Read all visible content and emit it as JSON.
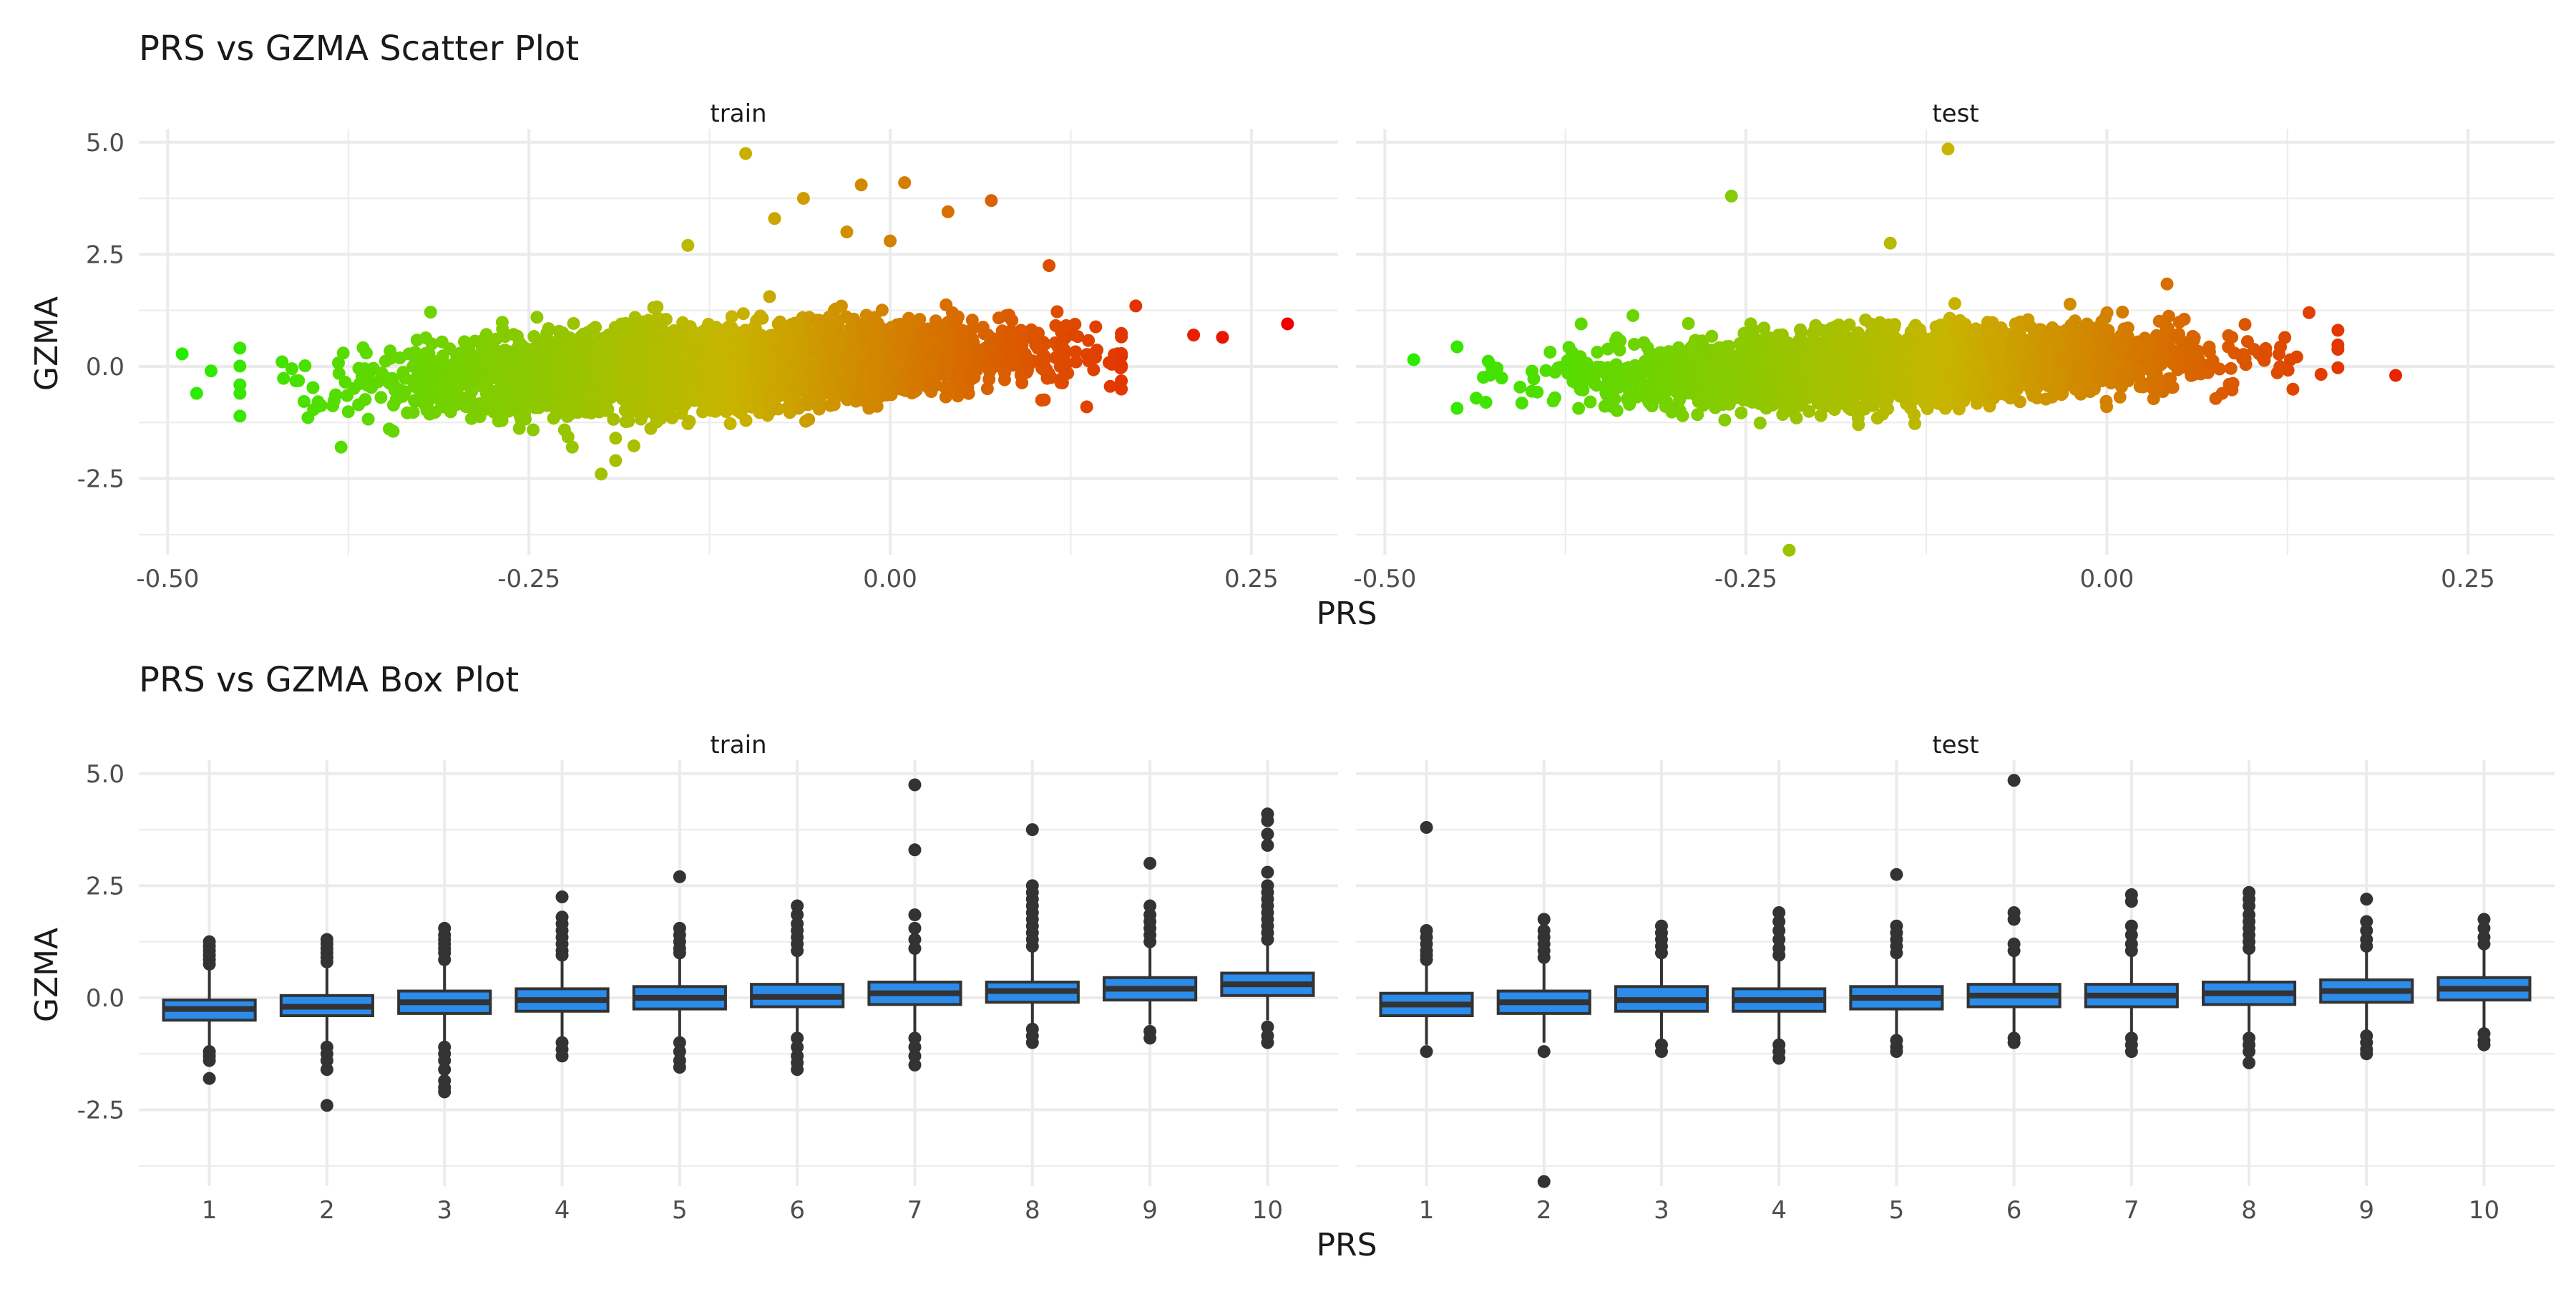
{
  "colors": {
    "point_low": "#22ee00",
    "point_mid": "#c8b400",
    "point_high": "#ee0000",
    "box_fill": "#2b8ceb",
    "box_line": "#333333"
  },
  "chart_data": [
    {
      "type": "scatter",
      "title": "PRS vs GZMA Scatter Plot",
      "xlabel": "PRS",
      "ylabel": "GZMA",
      "xlim": [
        -0.52,
        0.31
      ],
      "ylim": [
        -4.2,
        5.3
      ],
      "x_ticks": [
        -0.5,
        -0.25,
        0.0,
        0.25
      ],
      "x_tick_labels": [
        "-0.50",
        "-0.25",
        "0.00",
        "0.25"
      ],
      "y_ticks": [
        -2.5,
        0.0,
        2.5,
        5.0
      ],
      "y_tick_labels": [
        "-2.5",
        "0.0",
        "2.5",
        "5.0"
      ],
      "grid": true,
      "legend": "none",
      "color_scale": {
        "low": "#22ee00",
        "mid": "#c8b400",
        "high": "#ee0000"
      },
      "panels": [
        {
          "strip": "train",
          "bulk": {
            "x_mean": -0.12,
            "x_sd": 0.1,
            "slope": 1.6,
            "resid_sd": 0.42
          },
          "points": [
            [
              -0.49,
              0.28
            ],
            [
              -0.48,
              -0.6
            ],
            [
              -0.47,
              -0.1
            ],
            [
              -0.45,
              -0.6
            ],
            [
              -0.38,
              -1.8
            ],
            [
              -0.22,
              -1.8
            ],
            [
              -0.19,
              -1.6
            ],
            [
              -0.19,
              -2.1
            ],
            [
              -0.2,
              -2.4
            ],
            [
              -0.1,
              4.75
            ],
            [
              -0.08,
              3.3
            ],
            [
              -0.06,
              3.75
            ],
            [
              -0.02,
              4.05
            ],
            [
              0.01,
              4.1
            ],
            [
              -0.03,
              3.0
            ],
            [
              0.04,
              3.45
            ],
            [
              0.07,
              3.7
            ],
            [
              0.11,
              2.25
            ],
            [
              0.17,
              1.35
            ],
            [
              0.21,
              0.7
            ],
            [
              0.23,
              0.65
            ],
            [
              0.275,
              0.95
            ],
            [
              -0.14,
              2.7
            ],
            [
              0.0,
              2.8
            ]
          ]
        },
        {
          "strip": "test",
          "bulk": {
            "x_mean": -0.14,
            "x_sd": 0.095,
            "slope": 1.3,
            "resid_sd": 0.38
          },
          "points": [
            [
              -0.48,
              0.15
            ],
            [
              -0.26,
              3.8
            ],
            [
              -0.11,
              4.85
            ],
            [
              -0.22,
              -4.1
            ],
            [
              -0.15,
              2.75
            ],
            [
              0.2,
              -0.2
            ],
            [
              0.14,
              1.2
            ],
            [
              0.11,
              0.4
            ],
            [
              0.12,
              0.0
            ],
            [
              -0.43,
              -0.8
            ]
          ]
        }
      ]
    },
    {
      "type": "box",
      "title": "PRS vs GZMA Box Plot",
      "xlabel": "PRS",
      "ylabel": "GZMA",
      "categories": [
        "1",
        "2",
        "3",
        "4",
        "5",
        "6",
        "7",
        "8",
        "9",
        "10"
      ],
      "ylim": [
        -4.2,
        5.3
      ],
      "y_ticks": [
        -2.5,
        0.0,
        2.5,
        5.0
      ],
      "y_tick_labels": [
        "-2.5",
        "0.0",
        "2.5",
        "5.0"
      ],
      "grid": true,
      "legend": "none",
      "panels": [
        {
          "strip": "train",
          "boxes": [
            {
              "q1": -0.5,
              "median": -0.25,
              "q3": -0.05,
              "wlo": -1.15,
              "whi": 0.65,
              "outliers": [
                0.75,
                0.85,
                0.95,
                1.05,
                1.15,
                1.25,
                -1.2,
                -1.3,
                -1.4,
                -1.8
              ]
            },
            {
              "q1": -0.4,
              "median": -0.2,
              "q3": 0.05,
              "wlo": -1.05,
              "whi": 0.7,
              "outliers": [
                0.8,
                0.9,
                1.0,
                1.1,
                1.2,
                1.3,
                -1.1,
                -1.25,
                -1.4,
                -1.6,
                -2.4
              ]
            },
            {
              "q1": -0.35,
              "median": -0.1,
              "q3": 0.15,
              "wlo": -1.0,
              "whi": 0.8,
              "outliers": [
                0.85,
                1.0,
                1.1,
                1.2,
                1.3,
                1.4,
                1.55,
                -1.1,
                -1.25,
                -1.4,
                -1.6,
                -1.85,
                -2.0,
                -2.1
              ]
            },
            {
              "q1": -0.3,
              "median": -0.05,
              "q3": 0.2,
              "wlo": -0.95,
              "whi": 0.85,
              "outliers": [
                0.95,
                1.05,
                1.2,
                1.35,
                1.5,
                1.65,
                1.8,
                2.25,
                -1.0,
                -1.15,
                -1.3
              ]
            },
            {
              "q1": -0.25,
              "median": 0.0,
              "q3": 0.25,
              "wlo": -0.9,
              "whi": 0.9,
              "outliers": [
                1.0,
                1.1,
                1.25,
                1.4,
                1.55,
                2.7,
                -1.0,
                -1.2,
                -1.4,
                -1.55
              ]
            },
            {
              "q1": -0.2,
              "median": 0.02,
              "q3": 0.3,
              "wlo": -0.85,
              "whi": 0.95,
              "outliers": [
                1.05,
                1.2,
                1.35,
                1.5,
                1.65,
                1.85,
                2.05,
                -0.9,
                -1.1,
                -1.3,
                -1.45,
                -1.6
              ]
            },
            {
              "q1": -0.15,
              "median": 0.1,
              "q3": 0.35,
              "wlo": -0.8,
              "whi": 1.0,
              "outliers": [
                1.1,
                1.3,
                1.55,
                1.85,
                3.3,
                4.75,
                -0.9,
                -1.1,
                -1.3,
                -1.5
              ]
            },
            {
              "q1": -0.1,
              "median": 0.15,
              "q3": 0.35,
              "wlo": -0.7,
              "whi": 1.05,
              "outliers": [
                1.15,
                1.3,
                1.45,
                1.6,
                1.75,
                1.9,
                2.05,
                2.2,
                2.35,
                2.5,
                3.75,
                -0.7,
                -0.85,
                -1.0
              ]
            },
            {
              "q1": -0.05,
              "median": 0.2,
              "q3": 0.45,
              "wlo": -0.6,
              "whi": 1.15,
              "outliers": [
                1.25,
                1.4,
                1.55,
                1.7,
                1.85,
                2.05,
                3.0,
                -0.75,
                -0.9
              ]
            },
            {
              "q1": 0.05,
              "median": 0.3,
              "q3": 0.55,
              "wlo": -0.5,
              "whi": 1.2,
              "outliers": [
                1.3,
                1.45,
                1.6,
                1.75,
                1.9,
                2.05,
                2.2,
                2.35,
                2.5,
                2.8,
                3.4,
                3.65,
                3.95,
                4.1,
                -0.65,
                -0.85,
                -1.0
              ]
            }
          ]
        },
        {
          "strip": "test",
          "boxes": [
            {
              "q1": -0.4,
              "median": -0.15,
              "q3": 0.1,
              "wlo": -1.05,
              "whi": 0.75,
              "outliers": [
                0.85,
                0.95,
                1.05,
                1.2,
                1.35,
                1.5,
                3.8,
                -1.2
              ]
            },
            {
              "q1": -0.35,
              "median": -0.1,
              "q3": 0.15,
              "wlo": -1.0,
              "whi": 0.8,
              "outliers": [
                0.9,
                1.05,
                1.2,
                1.35,
                1.5,
                1.75,
                -1.2,
                -4.1
              ]
            },
            {
              "q1": -0.3,
              "median": -0.05,
              "q3": 0.25,
              "wlo": -0.95,
              "whi": 0.9,
              "outliers": [
                1.0,
                1.15,
                1.3,
                1.45,
                1.6,
                -1.05,
                -1.2
              ]
            },
            {
              "q1": -0.3,
              "median": -0.05,
              "q3": 0.2,
              "wlo": -0.95,
              "whi": 0.85,
              "outliers": [
                0.95,
                1.1,
                1.3,
                1.5,
                1.7,
                1.9,
                -1.05,
                -1.2,
                -1.35
              ]
            },
            {
              "q1": -0.25,
              "median": 0.0,
              "q3": 0.25,
              "wlo": -0.9,
              "whi": 0.9,
              "outliers": [
                1.0,
                1.15,
                1.3,
                1.45,
                1.6,
                2.75,
                -0.95,
                -1.1,
                -1.2
              ]
            },
            {
              "q1": -0.2,
              "median": 0.05,
              "q3": 0.3,
              "wlo": -0.85,
              "whi": 0.95,
              "outliers": [
                1.05,
                1.2,
                1.75,
                1.9,
                4.85,
                -0.9,
                -1.0
              ]
            },
            {
              "q1": -0.2,
              "median": 0.05,
              "q3": 0.3,
              "wlo": -0.85,
              "whi": 0.95,
              "outliers": [
                1.05,
                1.2,
                1.4,
                1.6,
                2.15,
                2.3,
                -0.9,
                -1.05,
                -1.2
              ]
            },
            {
              "q1": -0.15,
              "median": 0.1,
              "q3": 0.35,
              "wlo": -0.8,
              "whi": 1.0,
              "outliers": [
                1.1,
                1.25,
                1.4,
                1.55,
                1.7,
                1.85,
                2.05,
                2.2,
                2.35,
                -0.9,
                -1.05,
                -1.2,
                -1.45
              ]
            },
            {
              "q1": -0.1,
              "median": 0.15,
              "q3": 0.4,
              "wlo": -0.75,
              "whi": 1.05,
              "outliers": [
                1.15,
                1.3,
                1.5,
                1.7,
                2.2,
                -0.85,
                -1.0,
                -1.15,
                -1.25
              ]
            },
            {
              "q1": -0.05,
              "median": 0.2,
              "q3": 0.45,
              "wlo": -0.7,
              "whi": 1.1,
              "outliers": [
                1.2,
                1.35,
                1.55,
                1.75,
                -0.8,
                -0.95,
                -1.05
              ]
            }
          ]
        }
      ]
    }
  ]
}
